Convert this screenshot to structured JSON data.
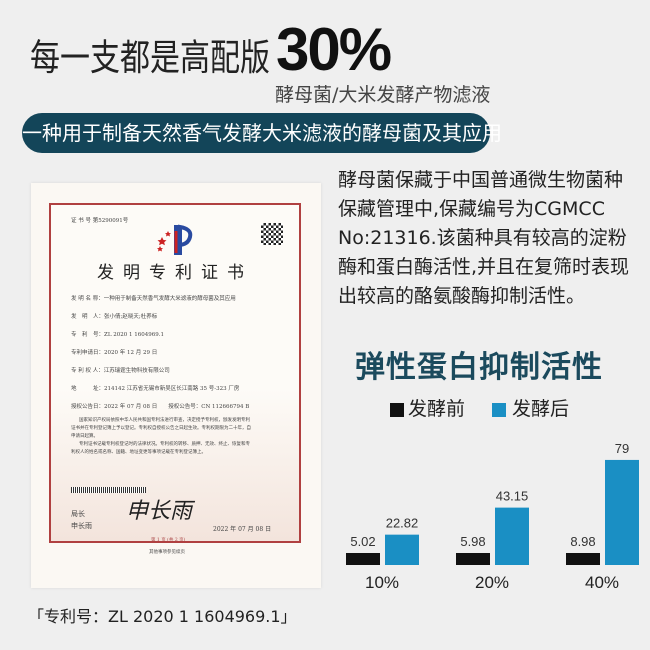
{
  "header": {
    "title": "每一支都是高配版",
    "highlight": "30%",
    "subtitle": "酵母菌/大米发酵产物滤液"
  },
  "banner": "一种用于制备天然香气发酵大米滤液的酵母菌及其应用",
  "description": "酵母菌保藏于中国普通微生物菌种保藏管理中,保藏编号为CGMCC No:21316.该菌种具有较高的淀粉酶和蛋白酶活性,并且在复筛时表现出较高的酪氨酸酶抑制活性。",
  "certificate": {
    "cert_no": "证 书 号 第5290091号",
    "title": "发明专利证书",
    "rows": [
      "发 明 名 称：一种用于制备天然香气发酵大米滤液的酵母菌及其应用",
      "发　明　人：张小倩;赵晓天;杜养标",
      "专　利　号：ZL 2020 1 1604969.1",
      "专利申请日：2020 年 12 月 29 日",
      "专 利 权 人：江苏瑞霆生物科技有限公司",
      "地　　　址：214142 江苏省无锡市新吴区长江南路 35 号-323 厂房",
      "授权公告日：2022 年 07 月 08 日　　授权公告号：CN 112666794 B"
    ],
    "body": [
      "国家知识产权局依照中华人民共和国专利法进行审查，决定授予专利权，颁发发明专利",
      "证书并在专利登记簿上予以登记。专利权自授权公告之日起生效。专利权期限为二十年，自",
      "申请日起算。",
      "专利证书记载专利权登记时的法律状况。专利权的转移、质押、无效、终止、恢复和专",
      "利权人的姓名或名称、国籍、地址变更等事项记载在专利登记簿上。"
    ],
    "signer_title": "局长",
    "signer_name": "申长雨",
    "signature": "申长雨",
    "date": "2022 年 07 月 08 日",
    "page": "第 1 页 (共 2 页)",
    "footer": "其他事项参见续页"
  },
  "patent_number": "「专利号：ZL 2020 1 1604969.1」",
  "colors": {
    "banner": "#134559",
    "before": "#111111",
    "after": "#1a8fc4",
    "chart_title": "#1b4a5d"
  },
  "chart_data": {
    "type": "bar",
    "title": "弹性蛋白抑制活性",
    "categories": [
      "10%",
      "20%",
      "40%"
    ],
    "series": [
      {
        "name": "发酵前",
        "values": [
          5.02,
          5.98,
          8.98
        ]
      },
      {
        "name": "发酵后",
        "values": [
          22.82,
          43.15,
          79
        ]
      }
    ],
    "legend": "top",
    "grid": false,
    "data_labels": true
  }
}
